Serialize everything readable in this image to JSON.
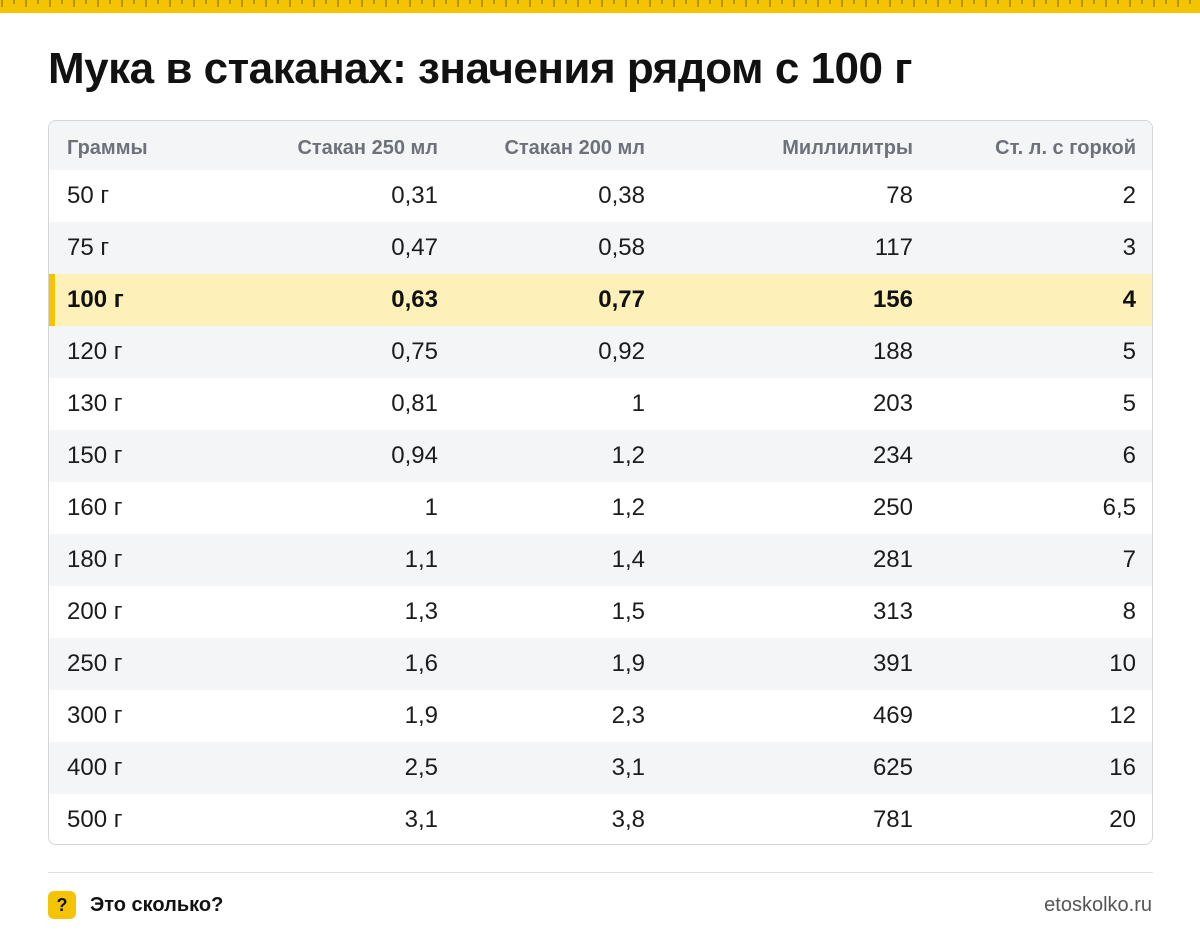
{
  "title": "Мука в стаканах: значения рядом с 100 г",
  "colors": {
    "accent": "#f5c400",
    "highlight_row": "#fdf0b8",
    "zebra": "#f4f5f7",
    "header_text": "#6d717a"
  },
  "table": {
    "headers": [
      "Граммы",
      "Стакан 250 мл",
      "Стакан 200 мл",
      "Миллилитры",
      "Ст. л. с горкой"
    ],
    "highlighted_row_index": 2,
    "rows": [
      [
        "50 г",
        "0,31",
        "0,38",
        "78",
        "2"
      ],
      [
        "75 г",
        "0,47",
        "0,58",
        "117",
        "3"
      ],
      [
        "100 г",
        "0,63",
        "0,77",
        "156",
        "4"
      ],
      [
        "120 г",
        "0,75",
        "0,92",
        "188",
        "5"
      ],
      [
        "130 г",
        "0,81",
        "1",
        "203",
        "5"
      ],
      [
        "150 г",
        "0,94",
        "1,2",
        "234",
        "6"
      ],
      [
        "160 г",
        "1",
        "1,2",
        "250",
        "6,5"
      ],
      [
        "180 г",
        "1,1",
        "1,4",
        "281",
        "7"
      ],
      [
        "200 г",
        "1,3",
        "1,5",
        "313",
        "8"
      ],
      [
        "250 г",
        "1,6",
        "1,9",
        "391",
        "10"
      ],
      [
        "300 г",
        "1,9",
        "2,3",
        "469",
        "12"
      ],
      [
        "400 г",
        "2,5",
        "3,1",
        "625",
        "16"
      ],
      [
        "500 г",
        "3,1",
        "3,8",
        "781",
        "20"
      ]
    ]
  },
  "footer": {
    "badge_icon": "question-icon",
    "badge_glyph": "?",
    "brand": "Это сколько?",
    "site": "etoskolko.ru"
  }
}
